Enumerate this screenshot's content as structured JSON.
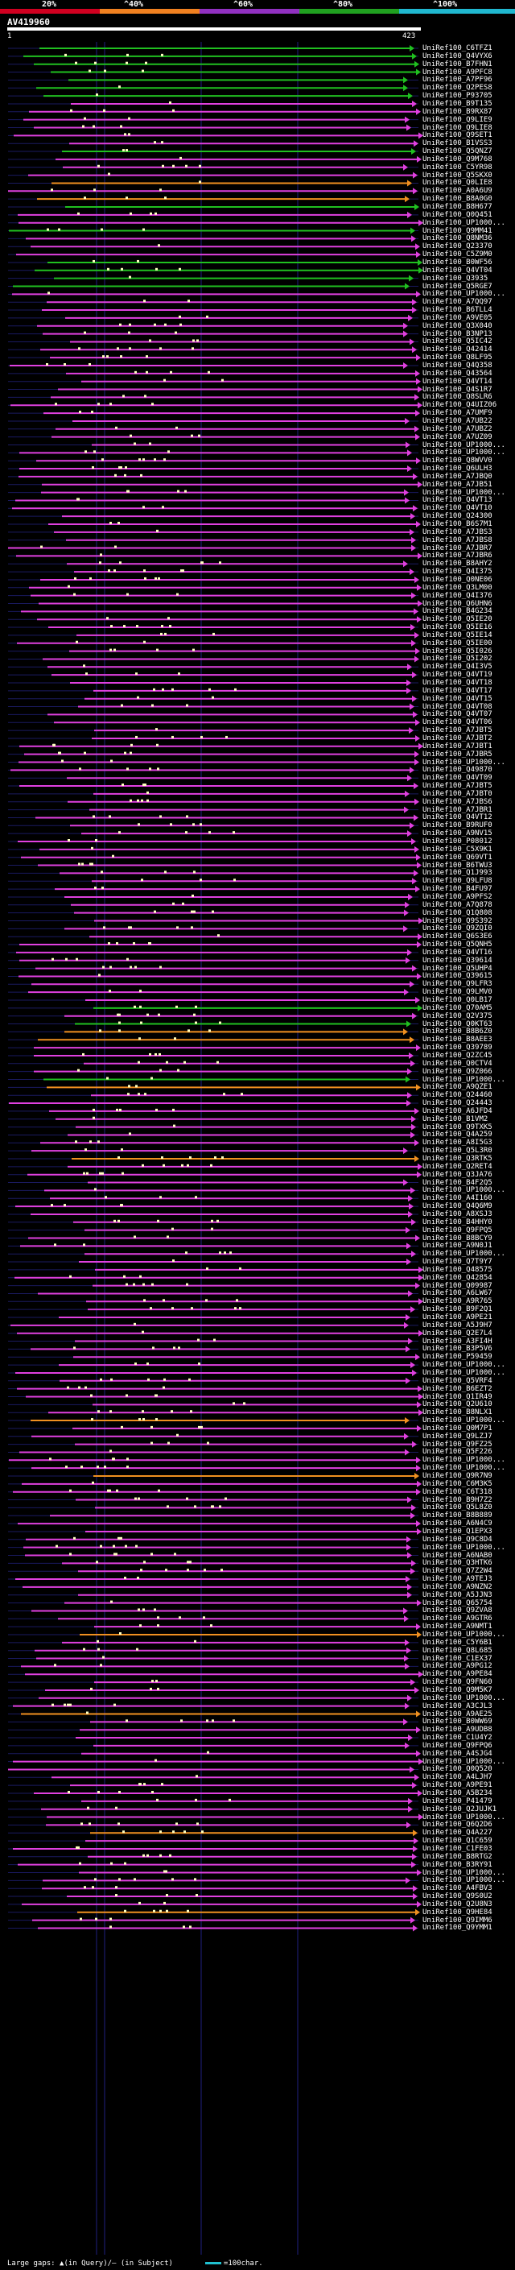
{
  "legend": {
    "labels": [
      "20%",
      "^40%",
      "^60%",
      "^80%",
      "^100%"
    ],
    "colors": [
      "#d00020",
      "#f08020",
      "#9030c0",
      "#20a020",
      "#20b8d0"
    ]
  },
  "query": {
    "id": "AV419960",
    "start": "1",
    "end": "423"
  },
  "hit_colors": {
    "magenta": "#e040e0",
    "green": "#20c020",
    "orange": "#f09020",
    "gap": "#ffffc0",
    "grid": "#202080"
  },
  "hits": [
    "UniRef100_C6TFZ1",
    "UniRef100_Q4VYX6",
    "UniRef100_B7FHN1",
    "UniRef100_A9PFC8",
    "UniRef100_A7PF96",
    "UniRef100_Q2PES8",
    "UniRef100_P93705",
    "UniRef100_B9T135",
    "UniRef100_B9RX87",
    "UniRef100_Q9LIE9",
    "UniRef100_Q9LIE8",
    "UniRef100_Q9SET1",
    "UniRef100_B1VSS3",
    "UniRef100_Q5QNZ7",
    "UniRef100_Q9M768",
    "UniRef100_C5YR98",
    "UniRef100_Q5SKX0",
    "UniRef100_Q0LIE8",
    "UniRef100_A0A6U9",
    "UniRef100_B8A0G0",
    "UniRef100_B8H677",
    "UniRef100_Q0Q451",
    "UniRef100_UP1000...",
    "UniRef100_Q9MM41",
    "UniRef100_Q8NM36",
    "UniRef100_Q23370",
    "UniRef100_C5Z9M0",
    "UniRef100_B0WF56",
    "UniRef100_Q4VT04",
    "UniRef100_Q3935",
    "UniRef100_Q5RGE7",
    "UniRef100_UP1000...",
    "UniRef100_A7QQ97",
    "UniRef100_B6TLL4",
    "UniRef100_A9VE05",
    "UniRef100_Q3X040",
    "UniRef100_B3NP13",
    "UniRef100_Q5IC42",
    "UniRef100_Q42414",
    "UniRef100_Q8LF95",
    "UniRef100_Q4Q358",
    "UniRef100_Q43564",
    "UniRef100_Q4VT14",
    "UniRef100_Q4S1R7",
    "UniRef100_Q8SLR6",
    "UniRef100_Q4UIZ06",
    "UniRef100_A7UMF9",
    "UniRef100_A7UB22",
    "UniRef100_A7UBZ2",
    "UniRef100_A7UZ09",
    "UniRef100_UP1000...",
    "UniRef100_UP1000...",
    "UniRef100_Q8WVV0",
    "UniRef100_Q6ULH3",
    "UniRef100_A7JBQ0",
    "UniRef100_A7JB51",
    "UniRef100_UP1000...",
    "UniRef100_Q4VT13",
    "UniRef100_Q4VT10",
    "UniRef100_Q24300",
    "UniRef100_B6S7M1",
    "UniRef100_A7JBS3",
    "UniRef100_A7JBS8",
    "UniRef100_A7JBR7",
    "UniRef100_A7JBR6",
    "UniRef100_B8AHY2",
    "UniRef100_Q4I375",
    "UniRef100_Q0NE06",
    "UniRef100_Q3LM00",
    "UniRef100_Q4I376",
    "UniRef100_Q6UHN6",
    "UniRef100_B4G234",
    "UniRef100_Q5IE20",
    "UniRef100_Q5IE16",
    "UniRef100_Q5IE14",
    "UniRef100_Q5IE00",
    "UniRef100_Q5I026",
    "UniRef100_Q5I202",
    "UniRef100_Q4I3V5",
    "UniRef100_Q4VT19",
    "UniRef100_Q4VT18",
    "UniRef100_Q4VT17",
    "UniRef100_Q4VT15",
    "UniRef100_Q4VT08",
    "UniRef100_Q4VT07",
    "UniRef100_Q4VT06",
    "UniRef100_A7JBT5",
    "UniRef100_A7JBT2",
    "UniRef100_A7JBT1",
    "UniRef100_A7JBR5",
    "UniRef100_UP1000...",
    "UniRef100_Q49870",
    "UniRef100_Q4VT09",
    "UniRef100_A7JBT5",
    "UniRef100_A7JBT0",
    "UniRef100_A7JBS6",
    "UniRef100_A7JBR1",
    "UniRef100_Q4VT12",
    "UniRef100_B9RUF0",
    "UniRef100_A9NV15",
    "UniRef100_P08012",
    "UniRef100_C5X9K1",
    "UniRef100_Q69VT1",
    "UniRef100_B6TWU3",
    "UniRef100_Q1J993",
    "UniRef100_Q9LFU8",
    "UniRef100_B4FU97",
    "UniRef100_A9PFS2",
    "UniRef100_A7Q878",
    "UniRef100_Q1Q808",
    "UniRef100_Q9S392",
    "UniRef100_Q9ZQI0",
    "UniRef100_Q6S3E6",
    "UniRef100_Q5QNH5",
    "UniRef100_Q4VT16",
    "UniRef100_Q39614",
    "UniRef100_Q5UHP4",
    "UniRef100_Q39615",
    "UniRef100_Q9LFR3",
    "UniRef100_Q9LMV0",
    "UniRef100_Q0LB17",
    "UniRef100_Q70AM5",
    "UniRef100_Q2V375",
    "UniRef100_Q0KT63",
    "UniRef100_B8B6Z0",
    "UniRef100_B8AEE3",
    "UniRef100_Q39789",
    "UniRef100_Q2ZC45",
    "UniRef100_Q0CTV4",
    "UniRef100_Q9Z066",
    "UniRef100_UP1000...",
    "UniRef100_A9QZE1",
    "UniRef100_Q24460",
    "UniRef100_Q24443",
    "UniRef100_A6JFD4",
    "UniRef100_B1VM2",
    "UniRef100_Q9TXK5",
    "UniRef100_Q4A259",
    "UniRef100_A8I5G3",
    "UniRef100_Q5L3R0",
    "UniRef100_Q3RTK5",
    "UniRef100_Q2RET4",
    "UniRef100_Q3JA76",
    "UniRef100_B4F2Q5",
    "UniRef100_UP1000...",
    "UniRef100_A4I160",
    "UniRef100_Q4Q6M9",
    "UniRef100_A8XSJ3",
    "UniRef100_B4HHY0",
    "UniRef100_Q9FPQ5",
    "UniRef100_B8BCY9",
    "UniRef100_A9N0J1",
    "UniRef100_UP1000...",
    "UniRef100_Q7T9Y7",
    "UniRef100_Q48575",
    "UniRef100_Q42854",
    "UniRef100_Q09987",
    "UniRef100_A6LW67",
    "UniRef100_A9R765",
    "UniRef100_B9F2Q1",
    "UniRef100_A9PE21",
    "UniRef100_A5J9H7",
    "UniRef100_Q2E7L4",
    "UniRef100_A3FI4H",
    "UniRef100_B3P5V6",
    "UniRef100_P59459",
    "UniRef100_UP1000...",
    "UniRef100_UP1000...",
    "UniRef100_Q5VRF4",
    "UniRef100_B6EZT2",
    "UniRef100_Q1IR49",
    "UniRef100_Q2U610",
    "UniRef100_B8NLX1",
    "UniRef100_UP1000...",
    "UniRef100_Q0M7P1",
    "UniRef100_Q9LZJ7",
    "UniRef100_Q9FZ25",
    "UniRef100_Q5F226",
    "UniRef100_UP1000...",
    "UniRef100_UP1000...",
    "UniRef100_Q9R7N9",
    "UniRef100_C6M3K5",
    "UniRef100_C6T318",
    "UniRef100_B9H7Z2",
    "UniRef100_Q5L8Z0",
    "UniRef100_B8B889",
    "UniRef100_A6N4C9",
    "UniRef100_Q1EPX3",
    "UniRef100_Q9C8D4",
    "UniRef100_UP1000...",
    "UniRef100_A6NAB0",
    "UniRef100_Q3HTK6",
    "UniRef100_Q7Z2W4",
    "UniRef100_A9TEJ3",
    "UniRef100_A9NZN2",
    "UniRef100_A5JJN3",
    "UniRef100_Q65754",
    "UniRef100_Q9ZVA8",
    "UniRef100_A9GTR6",
    "UniRef100_A9NMT1",
    "UniRef100_UP1000...",
    "UniRef100_C5Y6B1",
    "UniRef100_Q8L685",
    "UniRef100_C1EX37",
    "UniRef100_A9PG12",
    "UniRef100_A9PE84",
    "UniRef100_Q9FN60",
    "UniRef100_Q9M5K7",
    "UniRef100_UP1000...",
    "UniRef100_A3CJL3",
    "UniRef100_A9AE25",
    "UniRef100_B0WW69",
    "UniRef100_A9UDB8",
    "UniRef100_C1U4Y2",
    "UniRef100_Q9FPQ6",
    "UniRef100_A4SJG4",
    "UniRef100_UP1000...",
    "UniRef100_Q0Q520",
    "UniRef100_A4LJH7",
    "UniRef100_A9PE91",
    "UniRef100_A5B234",
    "UniRef100_P41479",
    "UniRef100_Q2JUJK1",
    "UniRef100_UP1000...",
    "UniRef100_Q6Q2D6",
    "UniRef100_Q4A227",
    "UniRef100_Q1C659",
    "UniRef100_C1FE03",
    "UniRef100_B8RTG2",
    "UniRef100_B3RY91",
    "UniRef100_UP1000...",
    "UniRef100_UP1000...",
    "UniRef100_A4FBV3",
    "UniRef100_Q9S0U2",
    "UniRef100_Q2U8N3",
    "UniRef100_Q9HE84",
    "UniRef100_Q9IMM6",
    "UniRef100_Q9YMM1"
  ],
  "footer": {
    "text": "Large gaps: ▲(in Query)/— (in Subject)",
    "scale": "=100char."
  }
}
